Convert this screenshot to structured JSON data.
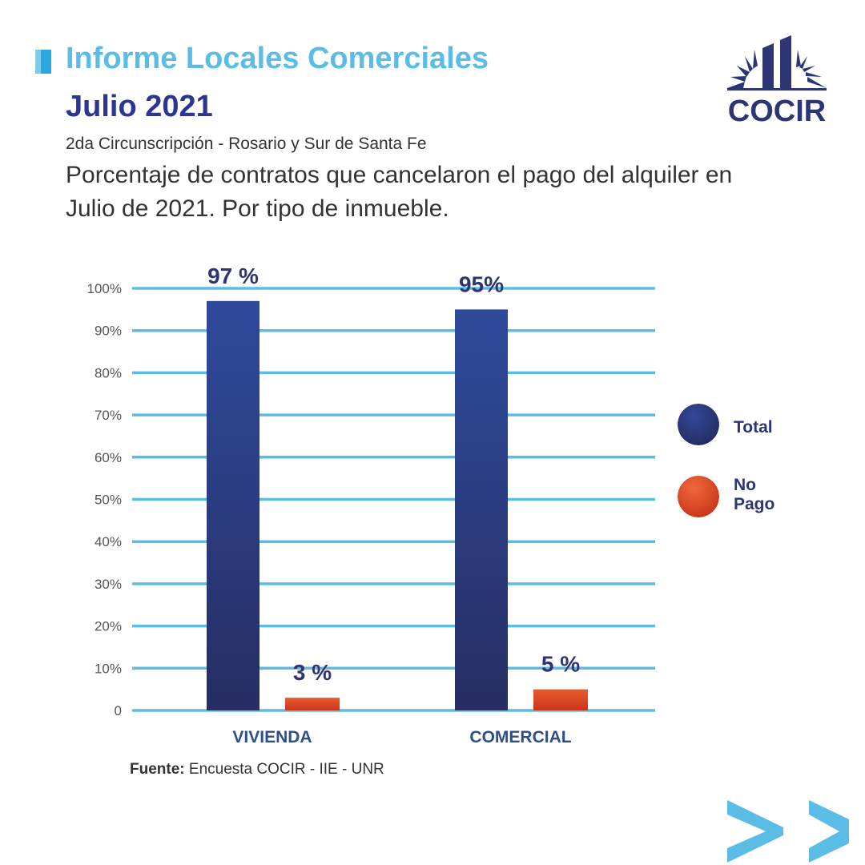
{
  "header": {
    "title": "Informe Locales Comerciales",
    "subtitle": "Julio 2021",
    "region": "2da Circunscripción - Rosario y Sur de Santa Fe",
    "description": "Porcentaje de contratos que cancelaron el pago del alquiler en Julio de 2021. Por tipo de inmueble."
  },
  "logo": {
    "text": "COCIR",
    "icon": "skyline-sun-logo-icon"
  },
  "source": {
    "label": "Fuente:",
    "text": "Encuesta COCIR - IIE - UNR"
  },
  "nav": {
    "icon": "double-chevron-right-icon"
  },
  "colors": {
    "title": "#5bbde6",
    "subtitle": "#2d3592",
    "total": "#2d3e8e",
    "no_pago": "#e4552d",
    "grid": "#5bbde6",
    "category_label": "#2d4f8a"
  },
  "chart_data": {
    "type": "bar",
    "categories": [
      "VIVIENDA",
      "COMERCIAL"
    ],
    "series": [
      {
        "name": "Total",
        "values": [
          97,
          95
        ],
        "labels": [
          "97 %",
          "95%"
        ]
      },
      {
        "name": "No Pago",
        "values": [
          3,
          5
        ],
        "labels": [
          "3 %",
          "5 %"
        ]
      }
    ],
    "ylim": [
      0,
      100
    ],
    "yticks": [
      0,
      10,
      20,
      30,
      40,
      50,
      60,
      70,
      80,
      90,
      100
    ],
    "ytick_labels": [
      "0",
      "10%",
      "20%",
      "30%",
      "40%",
      "50%",
      "60%",
      "70%",
      "80%",
      "90%",
      "100%"
    ],
    "legend_labels": [
      "Total",
      "No\nPago"
    ],
    "grid": true,
    "legend_position": "right"
  }
}
